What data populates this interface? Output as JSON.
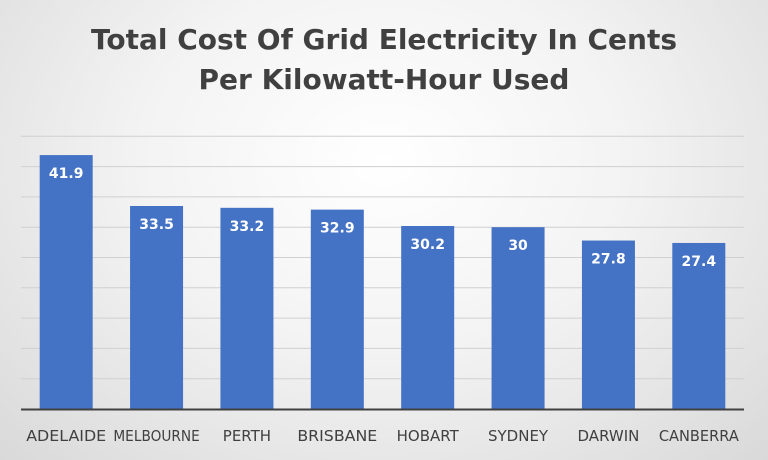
{
  "chart_data": {
    "type": "bar",
    "title_lines": [
      "Total Cost Of Grid Electricity In Cents",
      "Per Kilowatt-Hour Used"
    ],
    "categories": [
      "ADELAIDE",
      "MELBOURNE",
      "PERTH",
      "BRISBANE",
      "HOBART",
      "SYDNEY",
      "DARWIN",
      "CANBERRA"
    ],
    "values": [
      41.9,
      33.5,
      33.2,
      32.9,
      30.2,
      30,
      27.8,
      27.4
    ],
    "data_labels": [
      "41.9",
      "33.5",
      "33.2",
      "32.9",
      "30.2",
      "30",
      "27.8",
      "27.4"
    ],
    "xlabel": "",
    "ylabel": "",
    "ylim": [
      0,
      45
    ],
    "grid": true,
    "legend": "none",
    "bar_color": "#4472c4",
    "label_color": "#ffffff"
  }
}
